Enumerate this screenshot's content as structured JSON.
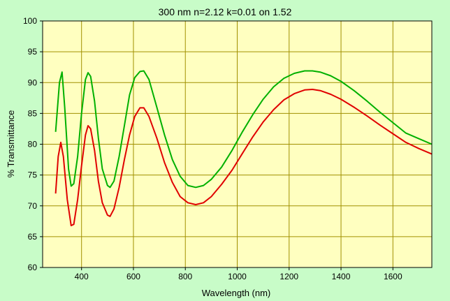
{
  "chart_data": {
    "type": "line",
    "title": "300 nm n=2.12 k=0.01 on 1.52",
    "xlabel": "Wavelength (nm)",
    "ylabel": "% Transmittance",
    "xlim": [
      250,
      1750
    ],
    "ylim": [
      60,
      100
    ],
    "x_ticks": [
      400,
      600,
      800,
      1000,
      1200,
      1400,
      1600
    ],
    "y_ticks": [
      60,
      65,
      70,
      75,
      80,
      85,
      90,
      95,
      100
    ],
    "grid": true,
    "colors": {
      "page_background": "#c8fcc8",
      "plot_background": "#ffffc0",
      "grid": "#a09000"
    },
    "series": [
      {
        "color": "#00b000",
        "points": [
          [
            300,
            82
          ],
          [
            315,
            90
          ],
          [
            325,
            91.7
          ],
          [
            335,
            86
          ],
          [
            350,
            76
          ],
          [
            360,
            73.2
          ],
          [
            370,
            73.6
          ],
          [
            385,
            78
          ],
          [
            400,
            85
          ],
          [
            415,
            90.5
          ],
          [
            425,
            91.6
          ],
          [
            435,
            91
          ],
          [
            450,
            87
          ],
          [
            465,
            81
          ],
          [
            480,
            76
          ],
          [
            500,
            73.3
          ],
          [
            510,
            73
          ],
          [
            525,
            74
          ],
          [
            545,
            78
          ],
          [
            565,
            83
          ],
          [
            585,
            88
          ],
          [
            605,
            90.8
          ],
          [
            625,
            91.8
          ],
          [
            640,
            91.9
          ],
          [
            660,
            90.5
          ],
          [
            690,
            86
          ],
          [
            720,
            81.5
          ],
          [
            750,
            77.5
          ],
          [
            780,
            74.8
          ],
          [
            810,
            73.3
          ],
          [
            840,
            73
          ],
          [
            870,
            73.3
          ],
          [
            900,
            74.3
          ],
          [
            940,
            76.3
          ],
          [
            980,
            79
          ],
          [
            1020,
            82
          ],
          [
            1060,
            84.8
          ],
          [
            1100,
            87.3
          ],
          [
            1140,
            89.3
          ],
          [
            1180,
            90.7
          ],
          [
            1220,
            91.5
          ],
          [
            1260,
            91.9
          ],
          [
            1290,
            91.9
          ],
          [
            1320,
            91.7
          ],
          [
            1360,
            91.1
          ],
          [
            1400,
            90.2
          ],
          [
            1450,
            88.7
          ],
          [
            1500,
            87
          ],
          [
            1550,
            85.2
          ],
          [
            1600,
            83.5
          ],
          [
            1650,
            81.8
          ],
          [
            1700,
            80.9
          ],
          [
            1750,
            80
          ]
        ]
      },
      {
        "color": "#e00000",
        "points": [
          [
            300,
            72
          ],
          [
            310,
            78
          ],
          [
            320,
            80.3
          ],
          [
            330,
            78
          ],
          [
            345,
            71
          ],
          [
            360,
            66.8
          ],
          [
            370,
            67
          ],
          [
            385,
            71
          ],
          [
            400,
            76.5
          ],
          [
            415,
            81.5
          ],
          [
            425,
            83
          ],
          [
            435,
            82.5
          ],
          [
            450,
            79
          ],
          [
            465,
            74
          ],
          [
            480,
            70.5
          ],
          [
            500,
            68.5
          ],
          [
            510,
            68.3
          ],
          [
            525,
            69.5
          ],
          [
            545,
            73
          ],
          [
            565,
            77.5
          ],
          [
            585,
            81.5
          ],
          [
            605,
            84.5
          ],
          [
            625,
            85.9
          ],
          [
            640,
            85.9
          ],
          [
            660,
            84.5
          ],
          [
            690,
            81
          ],
          [
            720,
            77
          ],
          [
            750,
            73.8
          ],
          [
            780,
            71.5
          ],
          [
            810,
            70.5
          ],
          [
            840,
            70.2
          ],
          [
            870,
            70.5
          ],
          [
            900,
            71.5
          ],
          [
            940,
            73.5
          ],
          [
            980,
            75.8
          ],
          [
            1020,
            78.5
          ],
          [
            1060,
            81.2
          ],
          [
            1100,
            83.6
          ],
          [
            1140,
            85.6
          ],
          [
            1180,
            87.2
          ],
          [
            1220,
            88.2
          ],
          [
            1260,
            88.8
          ],
          [
            1290,
            88.9
          ],
          [
            1320,
            88.7
          ],
          [
            1360,
            88.1
          ],
          [
            1400,
            87.3
          ],
          [
            1450,
            86
          ],
          [
            1500,
            84.6
          ],
          [
            1550,
            83.1
          ],
          [
            1600,
            81.7
          ],
          [
            1650,
            80.3
          ],
          [
            1700,
            79.3
          ],
          [
            1750,
            78.4
          ]
        ]
      }
    ]
  }
}
